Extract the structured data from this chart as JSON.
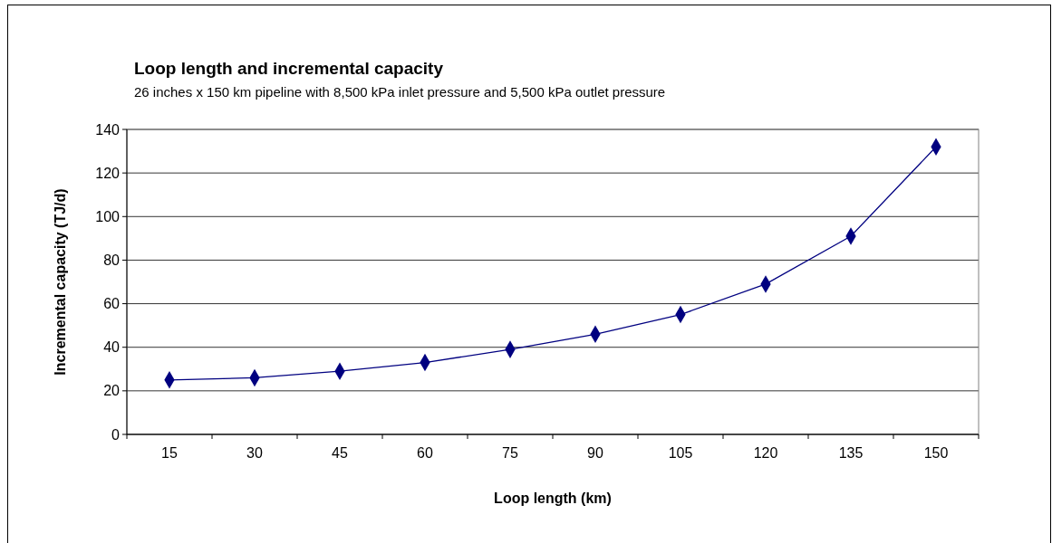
{
  "chart_data": {
    "type": "line",
    "title": "Loop length and incremental capacity",
    "subtitle": "26 inches x 150 km pipeline with 8,500 kPa inlet pressure and 5,500 kPa outlet pressure",
    "xlabel": "Loop length (km)",
    "ylabel": "Incremental capacity (TJ/d)",
    "categories": [
      "15",
      "30",
      "45",
      "60",
      "75",
      "90",
      "105",
      "120",
      "135",
      "150"
    ],
    "series": [
      {
        "color": "#000080",
        "values": [
          25,
          26,
          29,
          33,
          39,
          46,
          55,
          69,
          91,
          132
        ]
      }
    ],
    "ylim": [
      0,
      140
    ],
    "yticks": [
      0,
      20,
      40,
      60,
      80,
      100,
      120,
      140
    ],
    "grid": "y",
    "marker": "diamond",
    "line_style": "solid"
  }
}
